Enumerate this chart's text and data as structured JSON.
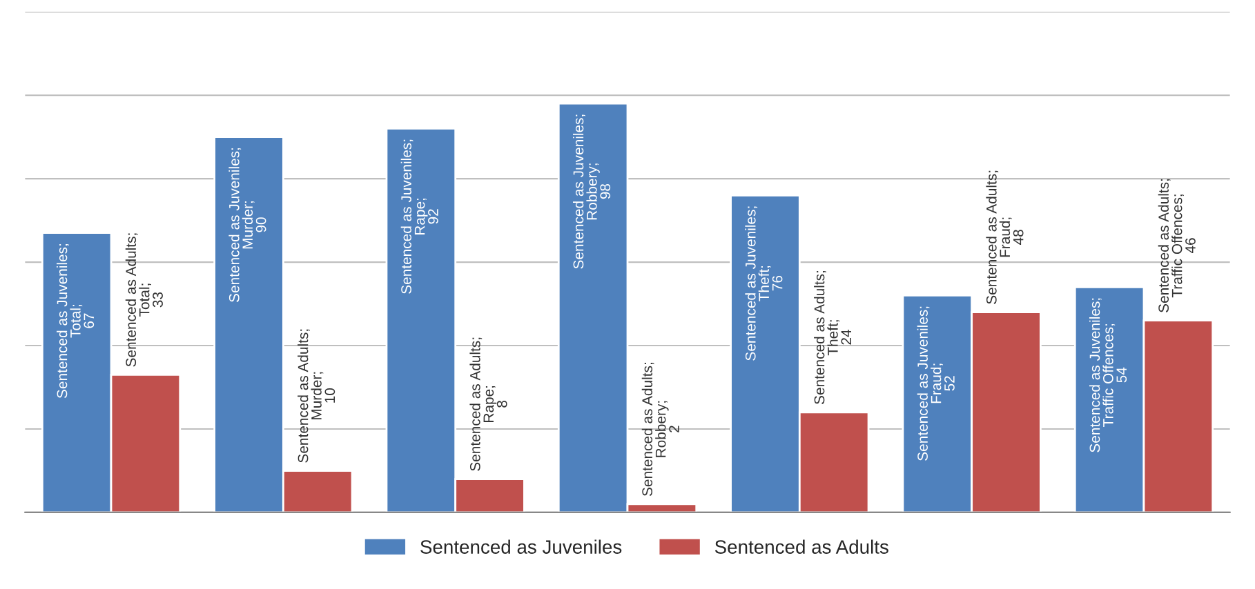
{
  "chart_data": {
    "type": "bar",
    "categories": [
      null,
      null,
      null,
      null,
      null,
      null,
      null
    ],
    "series": [
      {
        "name": "Sentenced as Juveniles",
        "color": "#4f81bd",
        "values": [
          67,
          90,
          92,
          98,
          76,
          52,
          54
        ],
        "value_labels": [
          "Sentenced as Juveniles; Total; 67",
          "Sentenced as Juveniles; Murder; 90",
          "Sentenced as Juveniles; Rape; 92",
          "Sentenced as Juveniles; Robbery; 98",
          "Sentenced as Juveniles; Theft; 76",
          "Sentenced as Juveniles; Fraud; 52",
          "Sentenced as Juveniles; Traffic Offences; 54"
        ]
      },
      {
        "name": "Sentenced as Adults",
        "color": "#c0504d",
        "values": [
          33,
          10,
          8,
          2,
          24,
          48,
          46
        ],
        "value_labels": [
          "Sentenced as Adults; Total; 33",
          "Sentenced as Adults; Murder; 10",
          "Sentenced as Adults; Rape; 8",
          "Sentenced as Adults; Robbery; 2",
          "Sentenced as Adults; Theft; 24",
          "Sentenced as Adults; Fraud; 48",
          "Sentenced as Adults; Traffic Offences; 46"
        ]
      }
    ],
    "ylim": [
      0,
      120
    ],
    "yticks": [
      {
        "value": 0,
        "label": null
      },
      {
        "value": 20,
        "label": null
      },
      {
        "value": 40,
        "label": null
      },
      {
        "value": 60,
        "label": null
      },
      {
        "value": 80,
        "label": null
      },
      {
        "value": 100,
        "label": null
      },
      {
        "value": 120,
        "label": null
      }
    ],
    "grid": "y",
    "legend": "bottom"
  }
}
